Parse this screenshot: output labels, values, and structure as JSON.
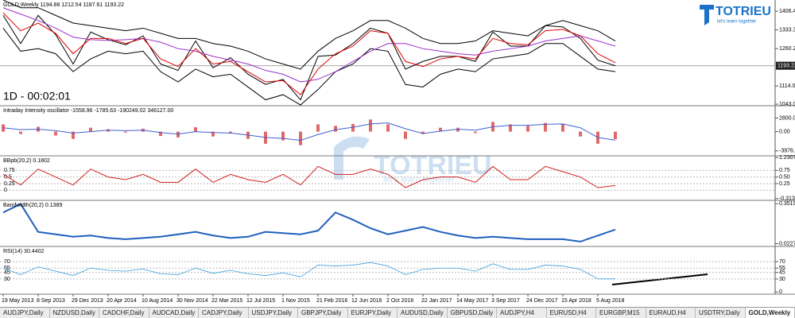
{
  "chart_data": [
    {
      "type": "line",
      "title": "GOLD,Weekly  1194.88 1212.54 1187.61 1193.22",
      "categories": [
        "19 May 2013",
        null,
        "8 Sep 2013",
        null,
        "29 Dec 2013",
        null,
        "20 Apr 2014",
        null,
        "10 Aug 2014",
        null,
        "30 Nov 2014",
        null,
        "22 Mar 2015",
        null,
        "12 Jul 2015",
        null,
        "1 Nov 2015",
        null,
        "21 Feb 2016",
        null,
        "12 Jun 2016",
        null,
        "2 Oct 2016",
        null,
        "22 Jan 2017",
        null,
        "14 May 2017",
        null,
        "3 Sep 2017",
        null,
        "24 Dec 2017",
        null,
        "15 Apr 2018",
        null,
        "5 Aug 2018",
        null
      ],
      "ylim": [
        1036.8,
        1450.2
      ],
      "yticks": [
        {
          "value": 1406.4,
          "label": "1406.40"
        },
        {
          "value": 1333.3,
          "label": "1333.30"
        },
        {
          "value": 1260.2,
          "label": "1260.20"
        },
        {
          "value": 1114.0,
          "label": "1114.00"
        },
        1043.05
      ],
      "last_price": 1193.22,
      "timer": "1D - 00:02:01",
      "series": [
        {
          "name": "BB upper",
          "color": "#000000",
          "values": [
            1450,
            1420,
            1420,
            1390,
            1360,
            1350,
            1340,
            1330,
            1340,
            1320,
            1300,
            1300,
            1280,
            1270,
            1250,
            1220,
            1200,
            1180,
            1250,
            1300,
            1330,
            1370,
            1370,
            1340,
            1300,
            1280,
            1280,
            1290,
            1330,
            1320,
            1310,
            1350,
            1370,
            1350,
            1330,
            1290
          ]
        },
        {
          "name": "BB lower",
          "color": "#000000",
          "values": [
            1340,
            1250,
            1260,
            1240,
            1170,
            1220,
            1250,
            1240,
            1250,
            1170,
            1130,
            1180,
            1150,
            1160,
            1110,
            1060,
            1080,
            1040,
            1100,
            1170,
            1200,
            1260,
            1250,
            1120,
            1110,
            1160,
            1180,
            1170,
            1220,
            1230,
            1240,
            1280,
            1280,
            1230,
            1180,
            1170
          ]
        },
        {
          "name": "Price",
          "color": "#000000",
          "values": [
            1390,
            1280,
            1390,
            1315,
            1200,
            1325,
            1295,
            1275,
            1310,
            1200,
            1175,
            1290,
            1185,
            1225,
            1160,
            1120,
            1140,
            1060,
            1230,
            1235,
            1280,
            1340,
            1320,
            1180,
            1210,
            1230,
            1230,
            1210,
            1325,
            1270,
            1270,
            1350,
            1345,
            1300,
            1215,
            1193
          ]
        },
        {
          "name": "MA slow",
          "color": "#9a30c8",
          "values": [
            1420,
            1395,
            1370,
            1340,
            1305,
            1295,
            1292,
            1295,
            1300,
            1285,
            1260,
            1250,
            1230,
            1215,
            1200,
            1175,
            1160,
            1130,
            1140,
            1170,
            1210,
            1250,
            1280,
            1280,
            1260,
            1250,
            1240,
            1235,
            1250,
            1260,
            1270,
            1290,
            1300,
            1310,
            1290,
            1270
          ]
        },
        {
          "name": "MA fast",
          "color": "#e00000",
          "values": [
            1400,
            1330,
            1360,
            1320,
            1240,
            1300,
            1300,
            1280,
            1300,
            1220,
            1190,
            1260,
            1200,
            1210,
            1170,
            1130,
            1135,
            1080,
            1180,
            1240,
            1270,
            1330,
            1320,
            1210,
            1190,
            1220,
            1230,
            1220,
            1300,
            1280,
            1275,
            1330,
            1335,
            1310,
            1240,
            1205
          ]
        }
      ]
    },
    {
      "type": "line",
      "title": "Intraday Intensity oscillator -1558.96 -1785.63 -190249.02 346127.00",
      "ylim": [
        -5000,
        5350
      ],
      "yticks": [
        {
          "value": 2800,
          "label": "2800.00"
        },
        {
          "value": 0,
          "label": "0.00"
        },
        -3976.28
      ],
      "series": [
        {
          "name": "Histogram",
          "type": "bar",
          "color": "#e06868",
          "values": [
            1500,
            -500,
            1000,
            -800,
            -1500,
            800,
            500,
            -200,
            600,
            -900,
            -1200,
            900,
            -1000,
            -400,
            -1500,
            -2500,
            -1800,
            -2800,
            1500,
            1200,
            1600,
            2500,
            1500,
            -1500,
            -500,
            800,
            800,
            -300,
            2000,
            1500,
            1200,
            1800,
            1600,
            -1000,
            -2500,
            -1558.96
          ]
        },
        {
          "name": "Signal",
          "color": "#4060d0",
          "values": [
            800,
            400,
            500,
            200,
            -300,
            0,
            300,
            200,
            300,
            -200,
            -500,
            0,
            -200,
            -300,
            -700,
            -1200,
            -1400,
            -1800,
            -600,
            400,
            900,
            1600,
            1800,
            600,
            -400,
            100,
            500,
            300,
            1000,
            1300,
            1300,
            1500,
            1600,
            800,
            -1200,
            -1785.63
          ]
        }
      ]
    },
    {
      "type": "line",
      "title": "BBpb(20,2) 0.1802",
      "ylim": [
        -0.38,
        1.3
      ],
      "yticks": [
        1.2307,
        0.75,
        {
          "value": 0.5,
          "label": "0.50"
        },
        0.25,
        -0.3134
      ],
      "levels": [
        0.75,
        0.5,
        0.25,
        0
      ],
      "series": [
        {
          "name": "%B",
          "color": "#d02020",
          "values": [
            0.6,
            0.2,
            0.8,
            0.5,
            0.2,
            0.8,
            0.5,
            0.4,
            0.6,
            0.3,
            0.3,
            0.8,
            0.3,
            0.6,
            0.4,
            0.3,
            0.6,
            0.2,
            0.9,
            0.6,
            0.6,
            0.8,
            0.6,
            0.1,
            0.4,
            0.5,
            0.5,
            0.3,
            0.9,
            0.4,
            0.4,
            0.9,
            0.7,
            0.5,
            0.1,
            0.1802
          ]
        }
      ]
    },
    {
      "type": "line",
      "title": "Bandwidth(20,2) 0.1389",
      "ylim": [
        0,
        0.38
      ],
      "yticks": [
        0.3519,
        0.0227
      ],
      "series": [
        {
          "name": "Bandwidth",
          "color": "#1f5fbf",
          "values": [
            0.28,
            0.35,
            0.12,
            0.1,
            0.08,
            0.09,
            0.07,
            0.06,
            0.07,
            0.08,
            0.1,
            0.12,
            0.09,
            0.07,
            0.08,
            0.12,
            0.11,
            0.1,
            0.13,
            0.28,
            0.22,
            0.15,
            0.1,
            0.13,
            0.16,
            0.12,
            0.09,
            0.07,
            0.08,
            0.07,
            0.06,
            0.06,
            0.06,
            0.04,
            0.09,
            0.1389
          ]
        }
      ]
    },
    {
      "type": "line",
      "title": "RSI(14) 30.4402",
      "ylim": [
        -5,
        105
      ],
      "yticks": [
        70,
        55,
        45,
        30,
        0
      ],
      "levels": [
        70,
        55,
        45,
        30
      ],
      "series": [
        {
          "name": "RSI",
          "color": "#3aa0e0",
          "values": [
            55,
            40,
            58,
            48,
            38,
            55,
            50,
            48,
            53,
            42,
            40,
            55,
            43,
            50,
            42,
            38,
            44,
            35,
            62,
            60,
            62,
            68,
            60,
            40,
            52,
            55,
            55,
            48,
            65,
            52,
            52,
            62,
            60,
            52,
            30,
            30.4402
          ]
        }
      ]
    }
  ],
  "logo": {
    "name": "TOTRIEU",
    "slogan": "let's learn together"
  },
  "tabs": [
    {
      "label": "AUDJPY,Daily"
    },
    {
      "label": "NZDUSD,Daily"
    },
    {
      "label": "CADCHF,Daily"
    },
    {
      "label": "AUDCAD,Daily"
    },
    {
      "label": "CADJPY,Daily"
    },
    {
      "label": "USDJPY,Daily"
    },
    {
      "label": "GBPJPY,Daily"
    },
    {
      "label": "EURJPY,Daily"
    },
    {
      "label": "AUDUSD,Daily"
    },
    {
      "label": "GBPUSD,Daily"
    },
    {
      "label": "AUDJPY,H4"
    },
    {
      "label": "EURUSD,H4"
    },
    {
      "label": "EURGBP,M15"
    },
    {
      "label": "EURAUD,H4"
    },
    {
      "label": "USDTRY,Daily"
    },
    {
      "label": "GOLD,Weekly",
      "active": true
    }
  ]
}
